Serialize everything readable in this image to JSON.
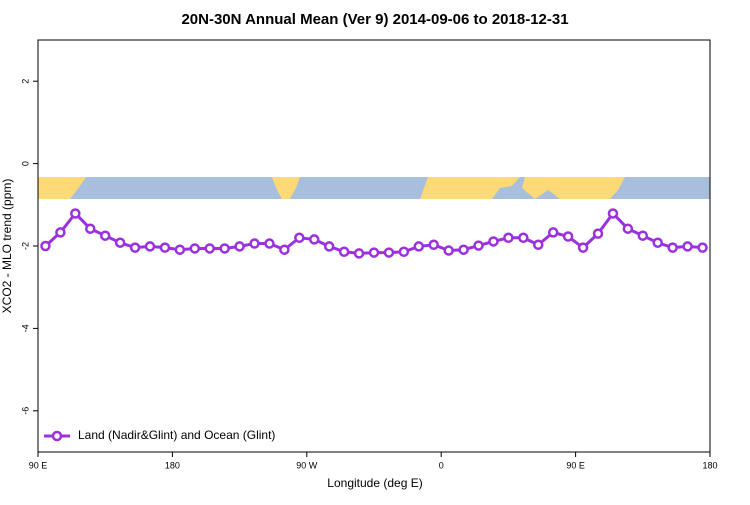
{
  "chart_data": {
    "type": "line",
    "title": "20N-30N Annual Mean (Ver 9)   2014-09-06 to 2018-12-31",
    "x_label": "Longitude (deg E)",
    "y_label": "XCO2 - MLO trend (ppm)",
    "xlim": [
      90,
      540
    ],
    "ylim": [
      -7,
      3
    ],
    "xticks": [
      {
        "value": 90,
        "label": "90 E"
      },
      {
        "value": 180,
        "label": "180"
      },
      {
        "value": 270,
        "label": "90 W"
      },
      {
        "value": 360,
        "label": "0"
      },
      {
        "value": 450,
        "label": "90 E"
      },
      {
        "value": 540,
        "label": "180"
      }
    ],
    "yticks": [
      -6,
      -4,
      -2,
      0,
      2
    ],
    "legend": "bottom-left",
    "x": [
      95,
      105,
      115,
      125,
      135,
      145,
      155,
      165,
      175,
      185,
      195,
      205,
      215,
      225,
      235,
      245,
      255,
      265,
      275,
      285,
      295,
      305,
      315,
      325,
      335,
      345,
      355,
      365,
      375,
      385,
      395,
      405,
      415,
      425,
      435,
      445,
      455,
      465,
      475,
      485,
      495,
      505,
      515,
      525,
      535
    ],
    "series": [
      {
        "name": "Land (Nadir&Glint) and Ocean (Glint)",
        "color": "#9b30e0",
        "values": [
          -2.0,
          -1.67,
          -1.21,
          -1.58,
          -1.75,
          -1.92,
          -2.04,
          -2.01,
          -2.04,
          -2.09,
          -2.06,
          -2.06,
          -2.06,
          -2.01,
          -1.94,
          -1.94,
          -2.09,
          -1.8,
          -1.84,
          -2.01,
          -2.14,
          -2.18,
          -2.16,
          -2.16,
          -2.14,
          -2.01,
          -1.97,
          -2.11,
          -2.09,
          -1.99,
          -1.89,
          -1.8,
          -1.8,
          -1.97,
          -1.67,
          -1.77,
          -2.04,
          -1.7,
          -1.21,
          -1.58,
          -1.75,
          -1.92,
          -2.04,
          -2.01,
          -2.04
        ]
      }
    ]
  }
}
